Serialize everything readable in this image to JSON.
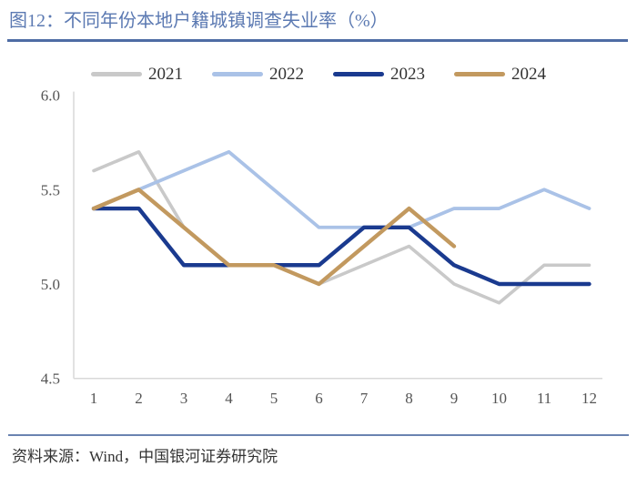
{
  "header": {
    "title": "图12：不同年份本地户籍城镇调查失业率（%）"
  },
  "footer": {
    "source": "资料来源：Wind，中国银河证券研究院"
  },
  "colors": {
    "title_text": "#5b79b2",
    "title_rule": "#4e6ca4",
    "footer_rule": "#6a83b1",
    "axis_line": "#d9d9d9",
    "tick_label": "#555555",
    "legend_label": "#333333"
  },
  "chart_data": {
    "type": "line",
    "title": "图12：不同年份本地户籍城镇调查失业率（%）",
    "xlabel": "",
    "ylabel": "",
    "x": [
      1,
      2,
      3,
      4,
      5,
      6,
      7,
      8,
      9,
      10,
      11,
      12
    ],
    "xtick_labels": [
      "1",
      "2",
      "3",
      "4",
      "5",
      "6",
      "7",
      "8",
      "9",
      "10",
      "11",
      "12"
    ],
    "ylim": [
      4.5,
      6.0
    ],
    "yticks": [
      4.5,
      5.0,
      5.5,
      6.0
    ],
    "ytick_labels": [
      "4.5",
      "5.0",
      "5.5",
      "6.0"
    ],
    "grid": false,
    "legend_position": "top-center",
    "series": [
      {
        "name": "2021",
        "color": "#c9c9c9",
        "values": [
          5.6,
          5.7,
          5.3,
          5.1,
          5.1,
          5.0,
          5.1,
          5.2,
          5.0,
          4.9,
          5.1,
          5.1
        ]
      },
      {
        "name": "2022",
        "color": "#aac2e7",
        "values": [
          5.4,
          5.5,
          5.6,
          5.7,
          5.5,
          5.3,
          5.3,
          5.3,
          5.4,
          5.4,
          5.5,
          5.4
        ]
      },
      {
        "name": "2023",
        "color": "#1a3a8f",
        "values": [
          5.4,
          5.4,
          5.1,
          5.1,
          5.1,
          5.1,
          5.3,
          5.3,
          5.1,
          5.0,
          5.0,
          5.0
        ]
      },
      {
        "name": "2024",
        "color": "#c2995f",
        "values": [
          5.4,
          5.5,
          5.3,
          5.1,
          5.1,
          5.0,
          5.2,
          5.4,
          5.2,
          null,
          null,
          null
        ]
      }
    ]
  }
}
